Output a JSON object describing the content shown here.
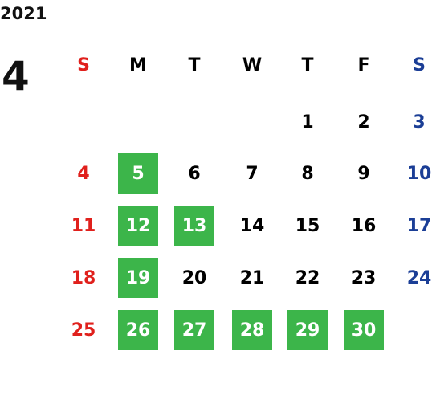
{
  "year": "2021",
  "month": "4",
  "weekdays": [
    "S",
    "M",
    "T",
    "W",
    "T",
    "F",
    "S"
  ],
  "weeks": [
    [
      null,
      null,
      null,
      null,
      {
        "day": 1
      },
      {
        "day": 2
      },
      {
        "day": 3
      }
    ],
    [
      {
        "day": 4
      },
      {
        "day": 5,
        "highlight": true
      },
      {
        "day": 6
      },
      {
        "day": 7
      },
      {
        "day": 8
      },
      {
        "day": 9
      },
      {
        "day": 10
      }
    ],
    [
      {
        "day": 11
      },
      {
        "day": 12,
        "highlight": true
      },
      {
        "day": 13,
        "highlight": true
      },
      {
        "day": 14
      },
      {
        "day": 15
      },
      {
        "day": 16
      },
      {
        "day": 17
      }
    ],
    [
      {
        "day": 18
      },
      {
        "day": 19,
        "highlight": true
      },
      {
        "day": 20
      },
      {
        "day": 21
      },
      {
        "day": 22
      },
      {
        "day": 23
      },
      {
        "day": 24
      }
    ],
    [
      {
        "day": 25
      },
      {
        "day": 26,
        "highlight": true
      },
      {
        "day": 27,
        "highlight": true
      },
      {
        "day": 28,
        "highlight": true
      },
      {
        "day": 29,
        "highlight": true
      },
      {
        "day": 30,
        "highlight": true
      },
      null
    ]
  ]
}
